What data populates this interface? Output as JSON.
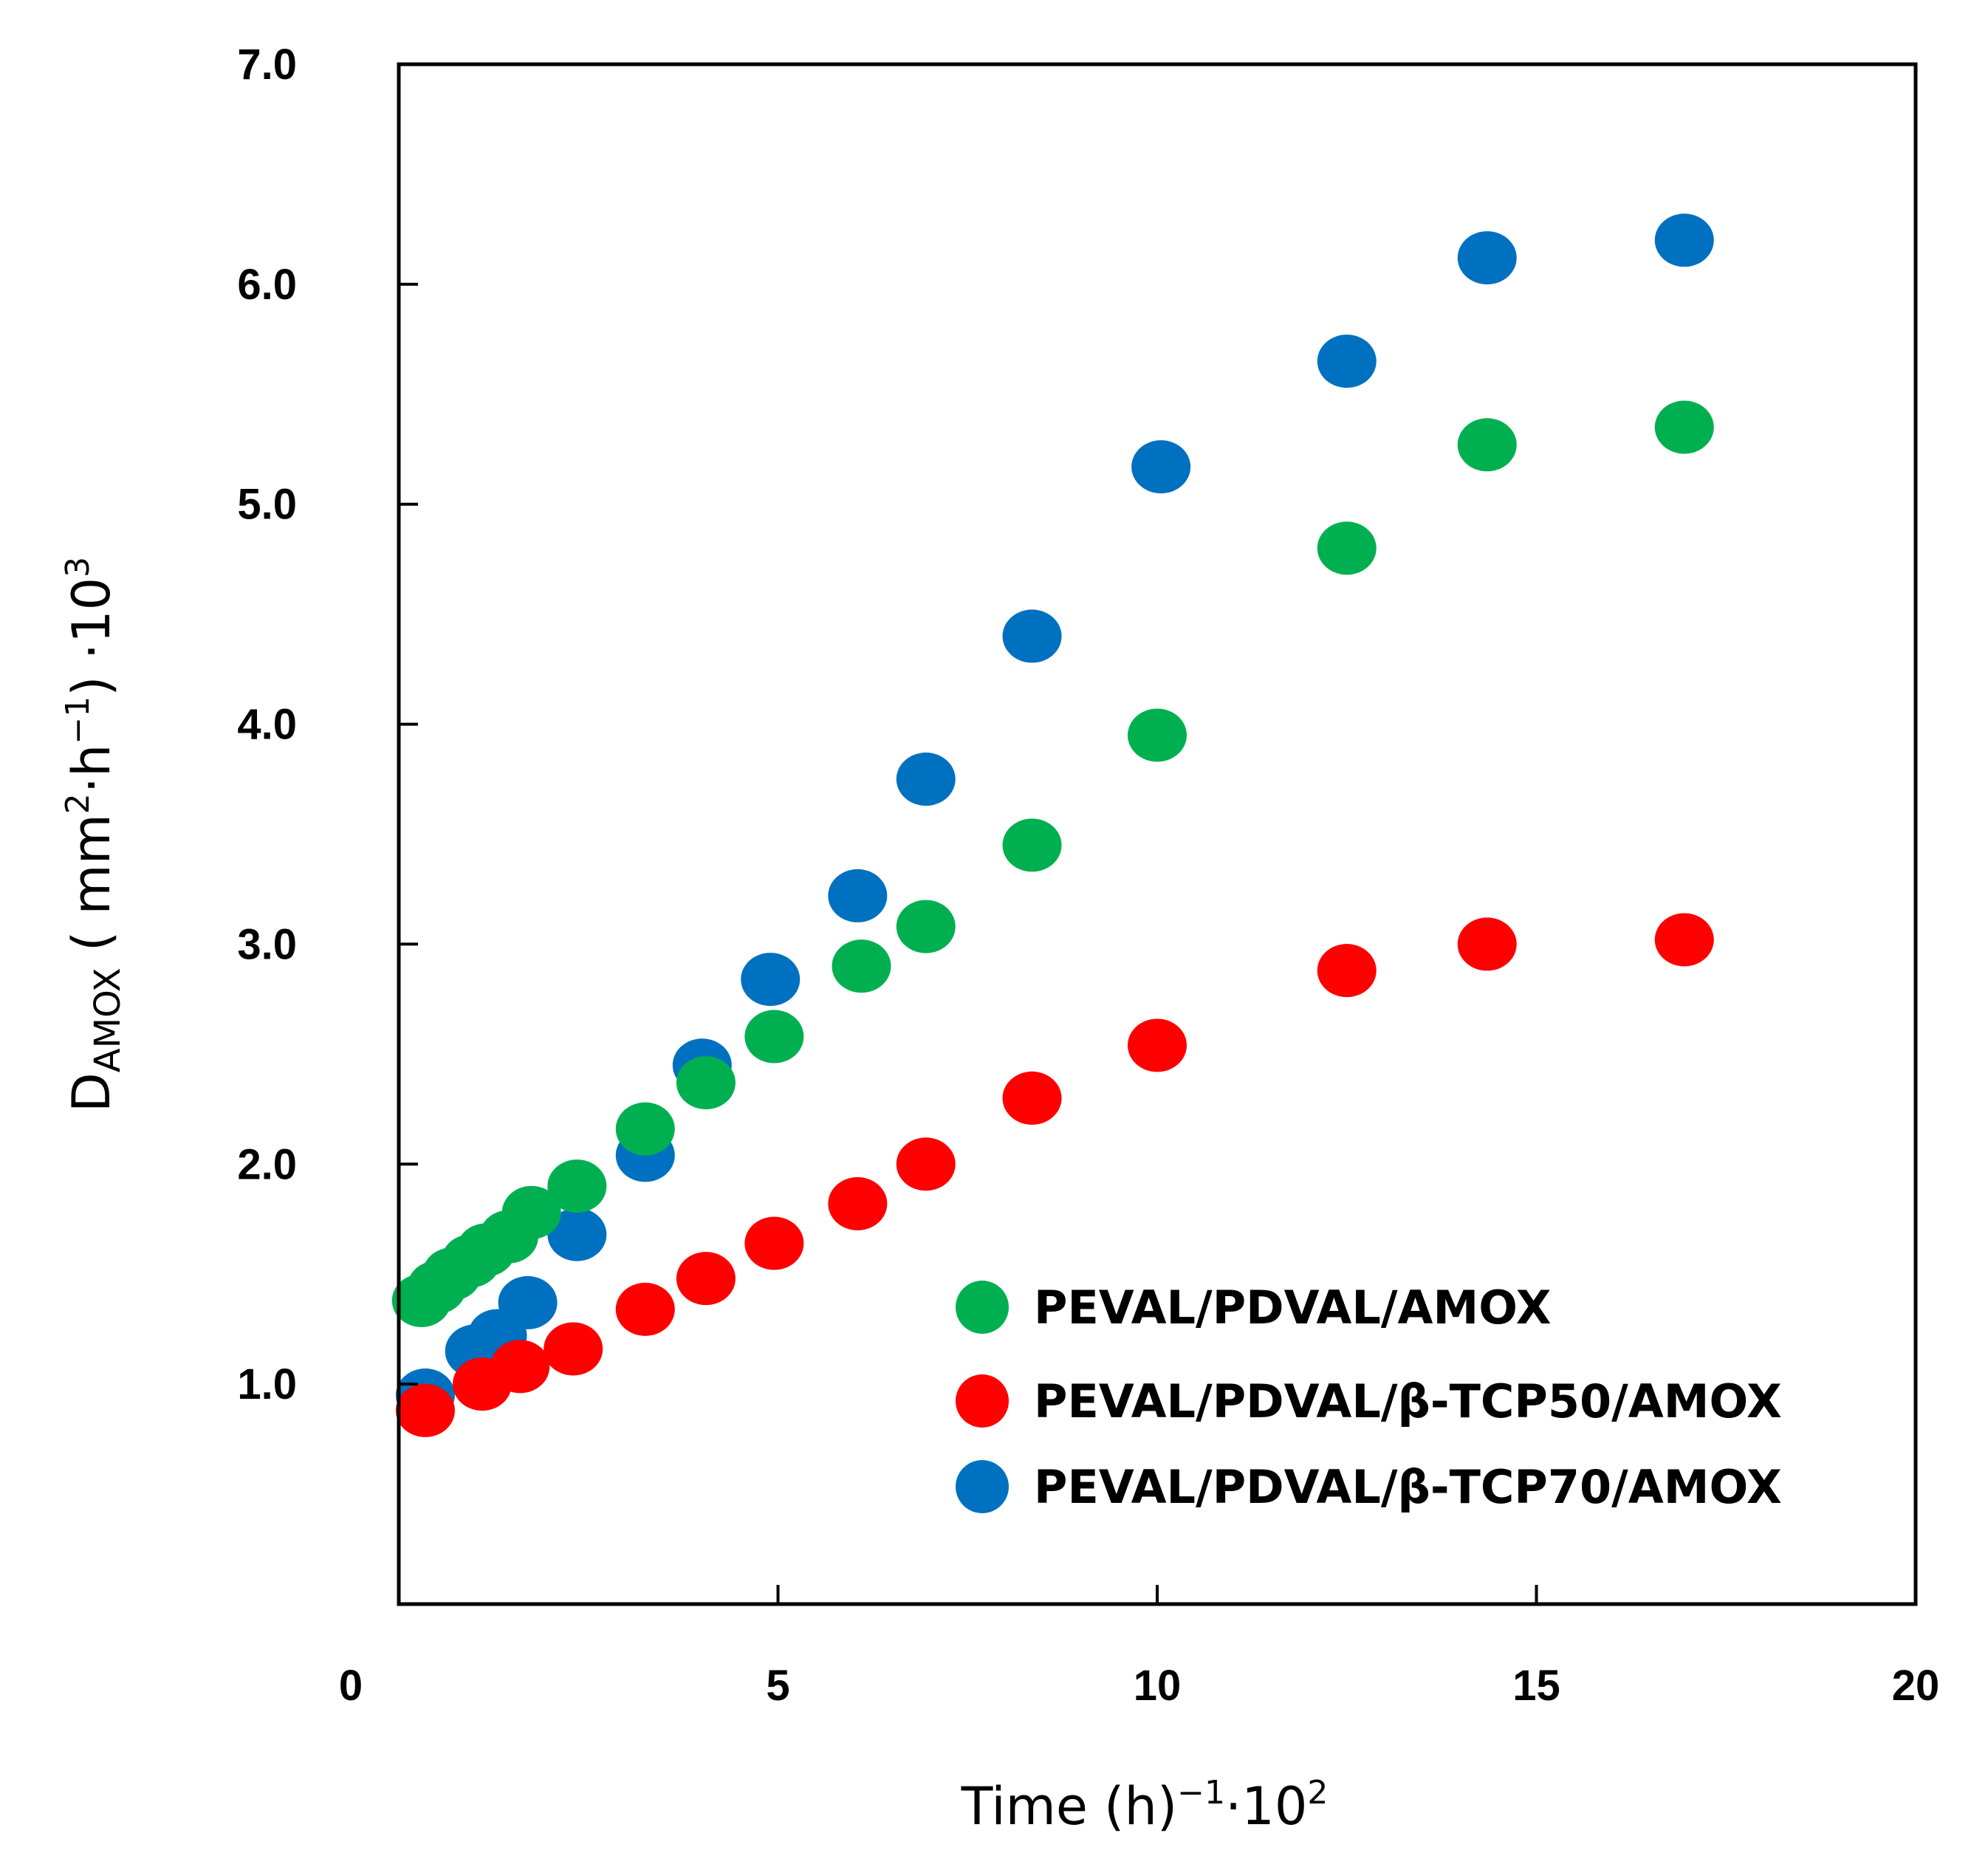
{
  "chart_data": {
    "type": "scatter",
    "title": "",
    "xlabel": {
      "main": "Time (h)",
      "exp1": "−1",
      "mid": "·10",
      "exp2": "2"
    },
    "ylabel": {
      "main": "D",
      "sub": "AMOX",
      "p1": " ( mm",
      "exp1": "2",
      "p2": "·h",
      "exp2": "−1",
      "p3": ") ·10",
      "exp3": "3"
    },
    "xlim": [
      0,
      20
    ],
    "ylim": [
      0.0,
      7.0
    ],
    "xticks": [
      0,
      5,
      10,
      15,
      20
    ],
    "xtick_labels": [
      "0",
      "5",
      "10",
      "15",
      "20"
    ],
    "yticks": [
      1.0,
      2.0,
      3.0,
      4.0,
      5.0,
      6.0,
      7.0
    ],
    "ytick_labels": [
      "1.0",
      "2.0",
      "3.0",
      "4.0",
      "5.0",
      "6.0",
      "7.0"
    ],
    "grid": false,
    "legend_position": "bottom-right",
    "series": [
      {
        "name": "PEVAL/PDVAL/β-TCP70/AMOX",
        "color": "#0070c0",
        "x": [
          0.35,
          1.0,
          1.3,
          1.7,
          2.35,
          3.25,
          4.0,
          4.9,
          6.05,
          6.95,
          8.35,
          10.05,
          12.5,
          14.35,
          16.95
        ],
        "y": [
          0.95,
          1.15,
          1.22,
          1.37,
          1.68,
          2.04,
          2.45,
          2.84,
          3.22,
          3.75,
          4.4,
          5.17,
          5.65,
          6.12,
          6.2
        ]
      },
      {
        "name": "PEVAL/PDVAL/AMOX",
        "color": "#00b050",
        "x": [
          0.3,
          0.5,
          0.7,
          0.95,
          1.15,
          1.45,
          1.75,
          2.35,
          3.25,
          4.05,
          4.95,
          6.1,
          6.95,
          8.35,
          10.0,
          12.5,
          14.35,
          16.95
        ],
        "y": [
          1.38,
          1.44,
          1.5,
          1.56,
          1.61,
          1.67,
          1.78,
          1.9,
          2.16,
          2.37,
          2.58,
          2.9,
          3.08,
          3.45,
          3.95,
          4.8,
          5.27,
          5.35
        ]
      },
      {
        "name": "PEVAL/PDVAL/β-TCP50/AMOX",
        "color": "#ff0000",
        "x": [
          0.35,
          1.1,
          1.6,
          2.3,
          3.25,
          4.05,
          4.95,
          6.05,
          6.95,
          8.35,
          10.0,
          12.5,
          14.35,
          16.95
        ],
        "y": [
          0.88,
          1.0,
          1.08,
          1.16,
          1.34,
          1.48,
          1.64,
          1.82,
          2.0,
          2.3,
          2.54,
          2.88,
          3.0,
          3.02
        ]
      }
    ]
  }
}
